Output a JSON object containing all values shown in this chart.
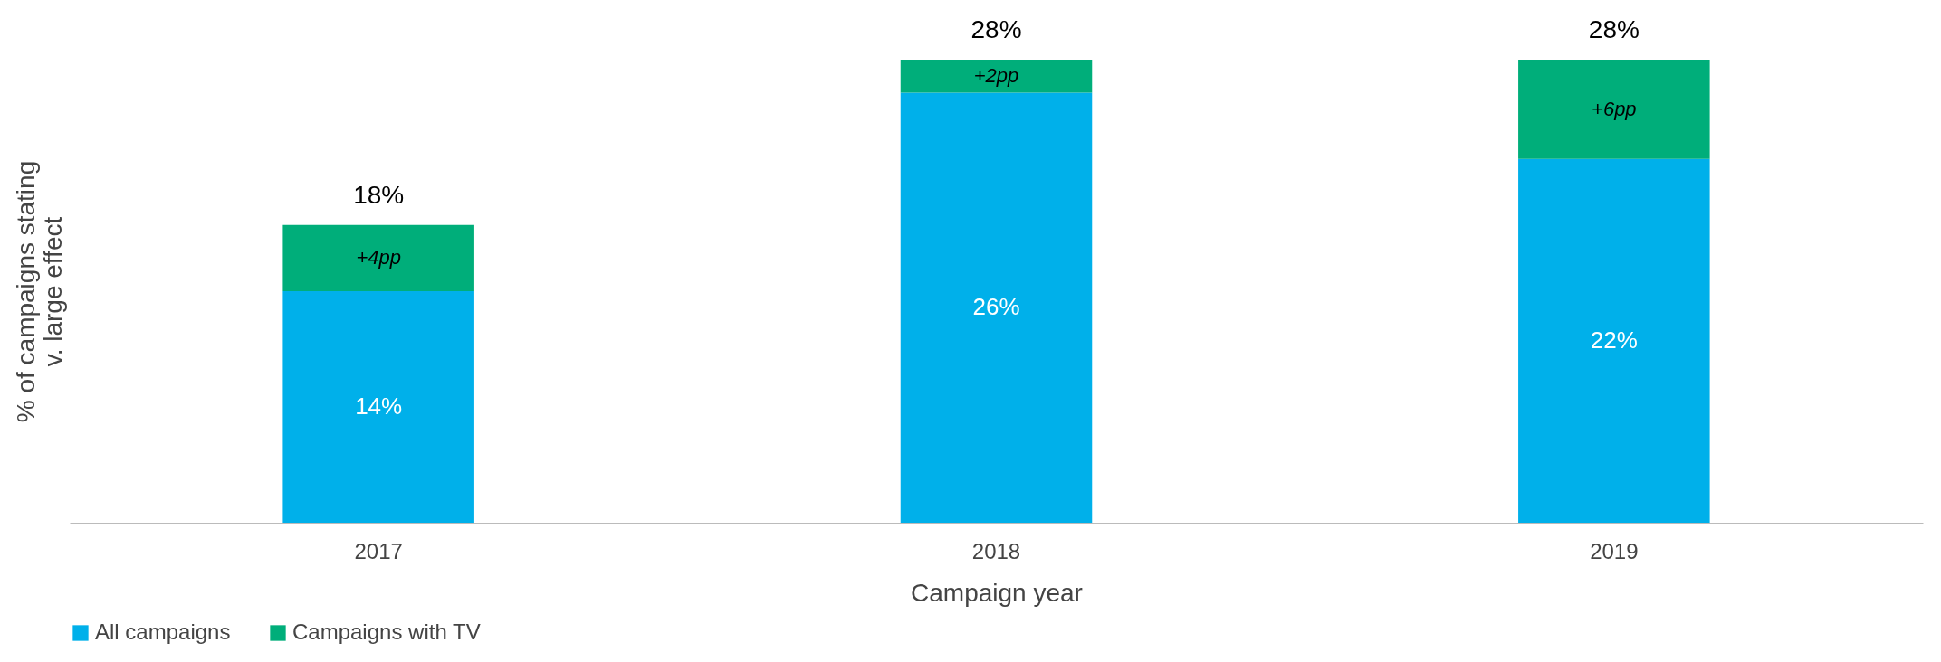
{
  "chart_data": {
    "type": "bar",
    "stacked": true,
    "xlabel": "Campaign year",
    "ylabel": "% of campaigns stating v. large effect",
    "categories": [
      "2017",
      "2018",
      "2019"
    ],
    "series": [
      {
        "name": "All campaigns",
        "color": "#00b0ea",
        "values": [
          14,
          26,
          22
        ],
        "value_labels": [
          "14%",
          "26%",
          "22%"
        ]
      },
      {
        "name": "Campaigns with TV",
        "color": "#00ae7a",
        "values": [
          4,
          2,
          6
        ],
        "value_labels": [
          "+4pp",
          "+2pp",
          "+6pp"
        ]
      }
    ],
    "totals": [
      "18%",
      "28%",
      "28%"
    ],
    "grid": false,
    "legend": "bottom"
  }
}
